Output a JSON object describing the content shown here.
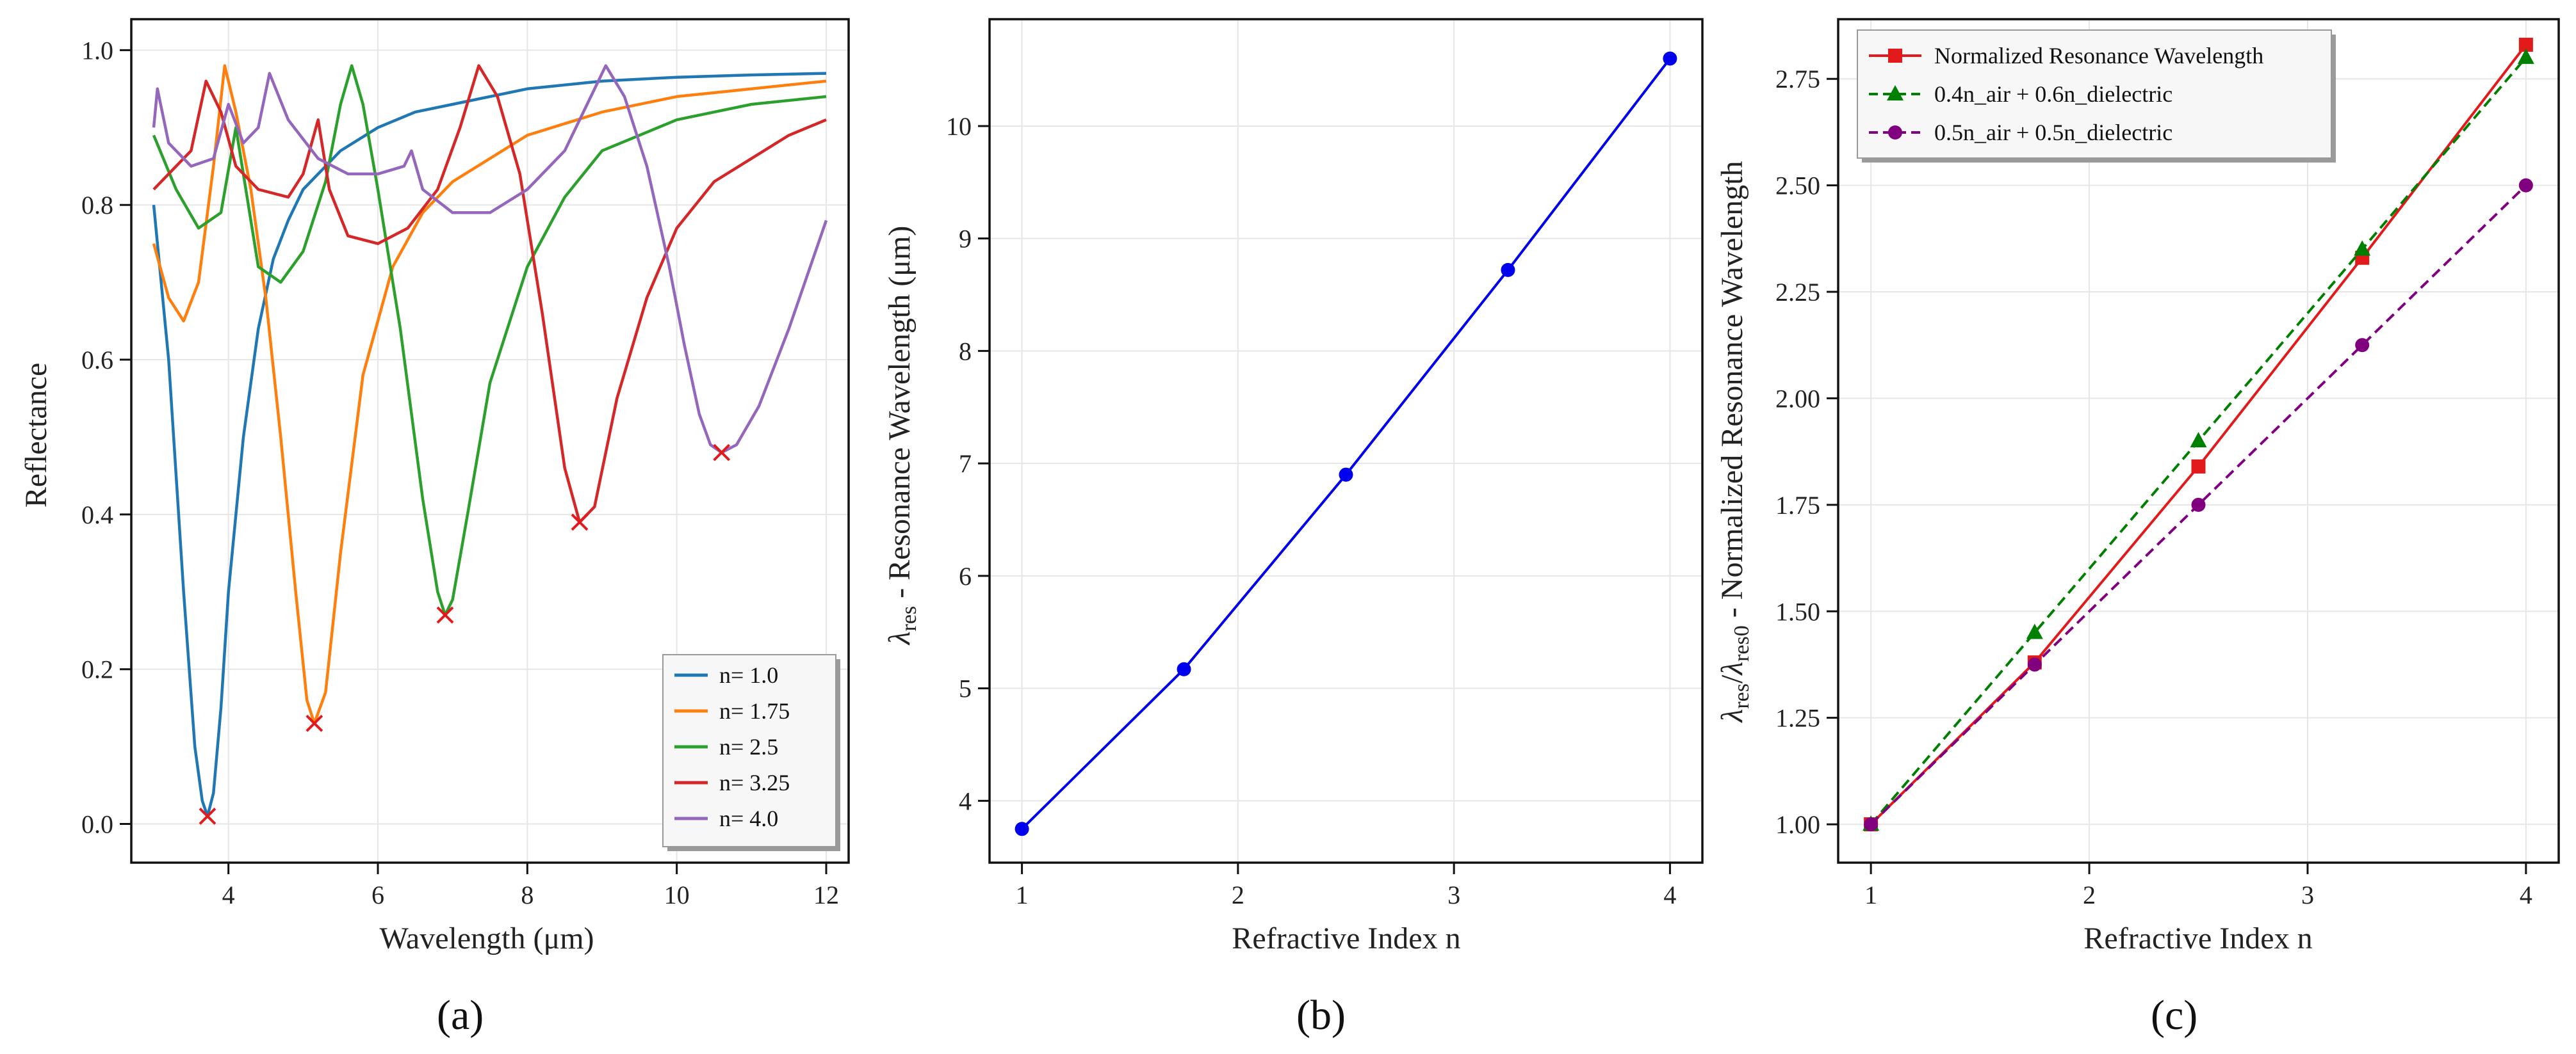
{
  "panels": [
    {
      "id": "a",
      "panel_label": "(a)",
      "xlabel": "Wavelength (μm)",
      "ylabel": "Reflectance",
      "chart_data": {
        "type": "line",
        "xlim": [
          2.7,
          12.3
        ],
        "ylim": [
          -0.05,
          1.04
        ],
        "xticks": [
          4,
          6,
          8,
          10,
          12
        ],
        "yticks": [
          0.0,
          0.2,
          0.4,
          0.6,
          0.8,
          1.0
        ],
        "ytick_labels": [
          "0.0",
          "0.2",
          "0.4",
          "0.6",
          "0.8",
          "1.0"
        ],
        "legend_position": "bottom-right",
        "series": [
          {
            "name": "n= 1.0",
            "color": "#1f77b4",
            "x": [
              3.0,
              3.2,
              3.4,
              3.55,
              3.65,
              3.72,
              3.8,
              3.9,
              4.0,
              4.2,
              4.4,
              4.6,
              4.8,
              5.0,
              5.5,
              6.0,
              6.5,
              7.0,
              8.0,
              9.0,
              10.0,
              11.0,
              12.0
            ],
            "y": [
              0.8,
              0.6,
              0.3,
              0.1,
              0.03,
              0.01,
              0.04,
              0.15,
              0.3,
              0.5,
              0.64,
              0.73,
              0.78,
              0.82,
              0.87,
              0.9,
              0.92,
              0.93,
              0.95,
              0.96,
              0.965,
              0.968,
              0.97
            ]
          },
          {
            "name": "n= 1.75",
            "color": "#ff7f0e",
            "x": [
              3.0,
              3.2,
              3.4,
              3.6,
              3.8,
              3.95,
              4.1,
              4.3,
              4.5,
              4.7,
              4.9,
              5.05,
              5.15,
              5.3,
              5.5,
              5.8,
              6.2,
              6.6,
              7.0,
              8.0,
              9.0,
              10.0,
              11.0,
              12.0
            ],
            "y": [
              0.75,
              0.68,
              0.65,
              0.7,
              0.85,
              0.98,
              0.92,
              0.82,
              0.68,
              0.5,
              0.3,
              0.16,
              0.13,
              0.17,
              0.35,
              0.58,
              0.72,
              0.79,
              0.83,
              0.89,
              0.92,
              0.94,
              0.95,
              0.96
            ]
          },
          {
            "name": "n= 2.5",
            "color": "#2ca02c",
            "x": [
              3.0,
              3.3,
              3.6,
              3.9,
              4.1,
              4.4,
              4.7,
              5.0,
              5.3,
              5.5,
              5.65,
              5.8,
              6.0,
              6.3,
              6.6,
              6.8,
              6.9,
              7.0,
              7.2,
              7.5,
              8.0,
              8.5,
              9.0,
              10.0,
              11.0,
              12.0
            ],
            "y": [
              0.89,
              0.82,
              0.77,
              0.79,
              0.9,
              0.72,
              0.7,
              0.74,
              0.83,
              0.93,
              0.98,
              0.93,
              0.82,
              0.64,
              0.42,
              0.3,
              0.27,
              0.29,
              0.4,
              0.57,
              0.72,
              0.81,
              0.87,
              0.91,
              0.93,
              0.94
            ]
          },
          {
            "name": "n= 3.25",
            "color": "#d62728",
            "x": [
              3.0,
              3.2,
              3.5,
              3.7,
              3.9,
              4.1,
              4.4,
              4.8,
              5.0,
              5.2,
              5.35,
              5.6,
              6.0,
              6.4,
              6.8,
              7.1,
              7.35,
              7.6,
              7.9,
              8.2,
              8.5,
              8.7,
              8.9,
              9.2,
              9.6,
              10.0,
              10.5,
              11.0,
              11.5,
              12.0
            ],
            "y": [
              0.82,
              0.84,
              0.87,
              0.96,
              0.92,
              0.85,
              0.82,
              0.81,
              0.84,
              0.91,
              0.82,
              0.76,
              0.75,
              0.77,
              0.82,
              0.9,
              0.98,
              0.94,
              0.84,
              0.66,
              0.46,
              0.39,
              0.41,
              0.55,
              0.68,
              0.77,
              0.83,
              0.86,
              0.89,
              0.91
            ]
          },
          {
            "name": "n= 4.0",
            "color": "#9467bd",
            "x": [
              3.0,
              3.05,
              3.2,
              3.5,
              3.8,
              4.0,
              4.2,
              4.4,
              4.55,
              4.8,
              5.2,
              5.6,
              6.0,
              6.35,
              6.45,
              6.6,
              7.0,
              7.5,
              8.0,
              8.5,
              8.8,
              9.05,
              9.3,
              9.6,
              9.9,
              10.1,
              10.3,
              10.45,
              10.6,
              10.8,
              11.1,
              11.5,
              12.0
            ],
            "y": [
              0.9,
              0.95,
              0.88,
              0.85,
              0.86,
              0.93,
              0.88,
              0.9,
              0.97,
              0.91,
              0.86,
              0.84,
              0.84,
              0.85,
              0.87,
              0.82,
              0.79,
              0.79,
              0.82,
              0.87,
              0.93,
              0.98,
              0.94,
              0.85,
              0.72,
              0.62,
              0.53,
              0.49,
              0.48,
              0.49,
              0.54,
              0.64,
              0.78
            ]
          }
        ],
        "minima_markers": {
          "color": "#e31a1c",
          "x": [
            3.72,
            5.15,
            6.9,
            8.7,
            10.6
          ],
          "y": [
            0.01,
            0.13,
            0.27,
            0.39,
            0.48
          ]
        }
      }
    },
    {
      "id": "b",
      "panel_label": "(b)",
      "xlabel": "Refractive Index n",
      "ylabel": "λres - Resonance Wavelength (μm)",
      "chart_data": {
        "type": "line",
        "xlim": [
          0.85,
          4.15
        ],
        "ylim": [
          3.45,
          10.95
        ],
        "xticks": [
          1,
          2,
          3,
          4
        ],
        "yticks": [
          4,
          5,
          6,
          7,
          8,
          9,
          10
        ],
        "series": [
          {
            "name": "Resonance Wavelength",
            "color": "#0000ee",
            "x": [
              1.0,
              1.75,
              2.5,
              3.25,
              4.0
            ],
            "y": [
              3.75,
              5.17,
              6.9,
              8.72,
              10.6
            ]
          }
        ]
      }
    },
    {
      "id": "c",
      "panel_label": "(c)",
      "xlabel": "Refractive Index n",
      "ylabel": "λres/λres0 - Normalized Resonance Wavelength",
      "chart_data": {
        "type": "line",
        "xlim": [
          0.85,
          4.15
        ],
        "ylim": [
          0.91,
          2.89
        ],
        "xticks": [
          1,
          2,
          3,
          4
        ],
        "yticks": [
          1.0,
          1.25,
          1.5,
          1.75,
          2.0,
          2.25,
          2.5,
          2.75
        ],
        "ytick_labels": [
          "1.00",
          "1.25",
          "1.50",
          "1.75",
          "2.00",
          "2.25",
          "2.50",
          "2.75"
        ],
        "legend_position": "top-left",
        "series": [
          {
            "name": "Normalized Resonance Wavelength",
            "color": "#e31a1c",
            "marker": "square",
            "dash": "solid",
            "x": [
              1.0,
              1.75,
              2.5,
              3.25,
              4.0
            ],
            "y": [
              1.0,
              1.38,
              1.84,
              2.33,
              2.83
            ]
          },
          {
            "name": "0.4n_air + 0.6n_dielectric",
            "color": "#008000",
            "marker": "triangle",
            "dash": "dashed",
            "x": [
              1.0,
              1.75,
              2.5,
              3.25,
              4.0
            ],
            "y": [
              1.0,
              1.45,
              1.9,
              2.35,
              2.8
            ]
          },
          {
            "name": "0.5n_air + 0.5n_dielectric",
            "color": "#800080",
            "marker": "circle",
            "dash": "dashed",
            "x": [
              1.0,
              1.75,
              2.5,
              3.25,
              4.0
            ],
            "y": [
              1.0,
              1.375,
              1.75,
              2.125,
              2.5
            ]
          }
        ]
      }
    }
  ]
}
